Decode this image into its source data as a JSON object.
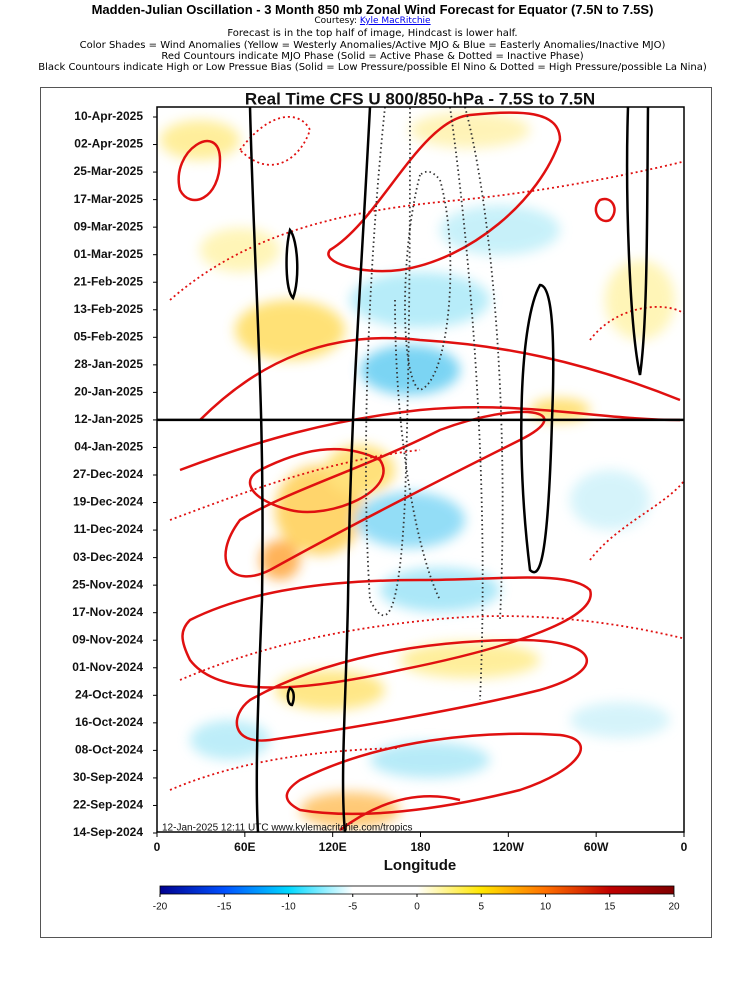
{
  "header": {
    "title": "Madden-Julian Oscillation - 3 Month 850 mb Zonal Wind Forecast for Equator (7.5N to 7.5S)",
    "courtesy_label": "Courtesy:",
    "courtesy_link": "Kyle MacRitchie",
    "lines": [
      "Forecast is in the top half of image, Hindcast is lower half.",
      "Color Shades = Wind Anomalies (Yellow = Westerly Anomalies/Active MJO & Blue = Easterly Anomalies/Inactive MJO)",
      "Red Countours indicate MJO Phase (Solid = Active Phase & Dotted = Inactive Phase)",
      "Black Countours indicate High or Low Pressue Bias (Solid = Low Pressure/possible El Nino & Dotted = High Pressure/possible La Nina)"
    ]
  },
  "chart_data": {
    "type": "hovmoller",
    "title": "Real Time CFS U 800/850-hPa - 7.5S to 7.5N",
    "xlabel": "Longitude",
    "footer": "12-Jan-2025 12:11 UTC www.kylemacritchie.com/tropics",
    "categories": [
      "10-Apr-2025",
      "02-Apr-2025",
      "25-Mar-2025",
      "17-Mar-2025",
      "09-Mar-2025",
      "01-Mar-2025",
      "21-Feb-2025",
      "13-Feb-2025",
      "05-Feb-2025",
      "28-Jan-2025",
      "20-Jan-2025",
      "12-Jan-2025",
      "04-Jan-2025",
      "27-Dec-2024",
      "19-Dec-2024",
      "11-Dec-2024",
      "03-Dec-2024",
      "25-Nov-2024",
      "17-Nov-2024",
      "09-Nov-2024",
      "01-Nov-2024",
      "24-Oct-2024",
      "16-Oct-2024",
      "08-Oct-2024",
      "30-Sep-2024",
      "22-Sep-2024",
      "14-Sep-2024"
    ],
    "forecast_start": "12-Jan-2025",
    "xlim": [
      0,
      360
    ],
    "xticks": [
      0,
      {
        "value": 60,
        "label": "60E"
      },
      {
        "value": 120,
        "label": "120E"
      },
      180,
      {
        "value": 240,
        "label": "120W"
      },
      {
        "value": 300,
        "label": "60W"
      },
      {
        "value": 360,
        "label": "0"
      }
    ],
    "colorbar": {
      "lim": [
        -20,
        20
      ],
      "ticks": [
        -20,
        -15,
        -10,
        -5,
        0,
        5,
        10,
        15,
        20
      ],
      "colors": [
        "#00008f",
        "#0050ff",
        "#00d8ff",
        "#ffffff",
        "#ffffff",
        "#ffe600",
        "#ff7000",
        "#c00000",
        "#7f0000"
      ]
    }
  }
}
